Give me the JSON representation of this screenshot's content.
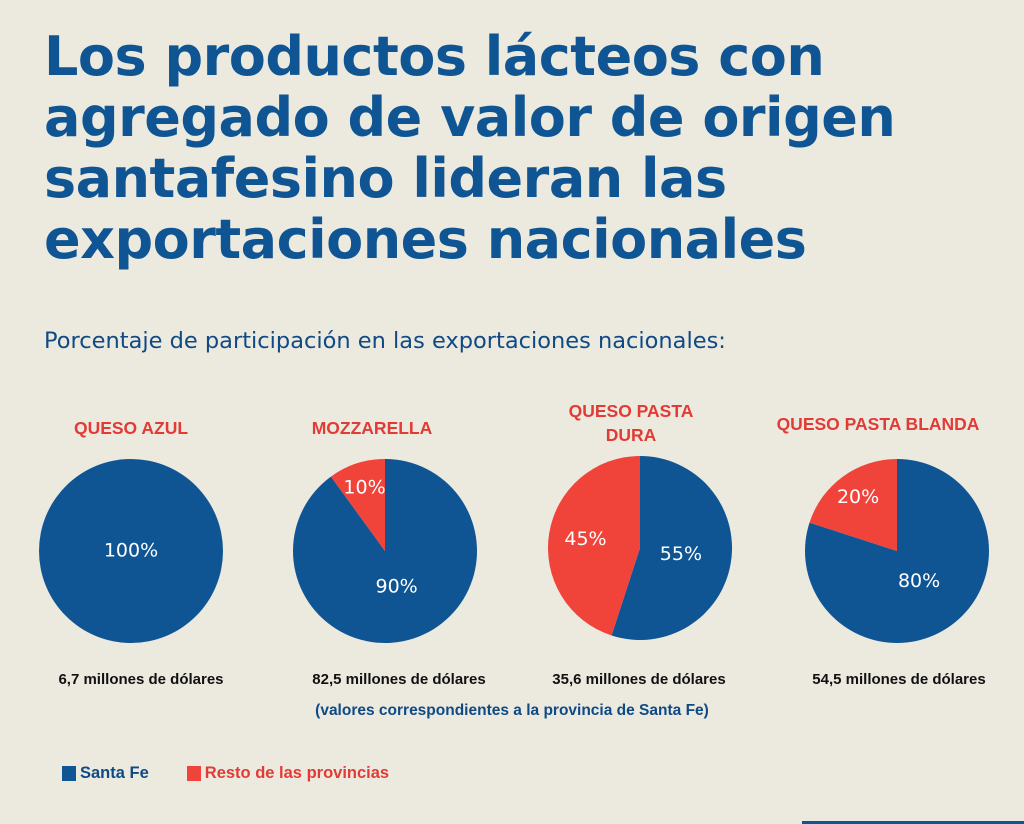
{
  "title": "Los productos lácteos con agregado de valor de origen santafesino lideran las exportaciones nacionales",
  "title_lines": [
    "Los productos lácteos con",
    "agregado de valor de origen",
    "santafesino lideran las",
    "exportaciones nacionales"
  ],
  "subtitle": "Porcentaje de participación en las exportaciones nacionales:",
  "colors": {
    "santa_fe": "#0f5593",
    "resto": "#f0433a",
    "label_red": "#e23b36",
    "background": "#ece9df"
  },
  "chart_data": {
    "type": "pie",
    "title": "Porcentaje de participación en las exportaciones nacionales:",
    "legend": [
      "Santa Fe",
      "Resto de las provincias"
    ],
    "legend_position": "bottom-left",
    "note": "(valores correspondientes a la provincia de Santa Fe)",
    "pies": [
      {
        "category": "QUESO AZUL",
        "category_lines": [
          "QUESO AZUL"
        ],
        "santa_fe": 100,
        "resto": 0,
        "labels": {
          "santa_fe": "100%",
          "resto": ""
        },
        "value_text": "6,7 millones de dólares",
        "value_musd": 6.7
      },
      {
        "category": "MOZZARELLA",
        "category_lines": [
          "MOZZARELLA"
        ],
        "santa_fe": 90,
        "resto": 10,
        "labels": {
          "santa_fe": "90%",
          "resto": "10%"
        },
        "value_text": "82,5 millones de dólares",
        "value_musd": 82.5
      },
      {
        "category": "QUESO PASTA DURA",
        "category_lines": [
          "QUESO PASTA",
          "DURA"
        ],
        "santa_fe": 55,
        "resto": 45,
        "labels": {
          "santa_fe": "55%",
          "resto": "45%"
        },
        "value_text": "35,6 millones de dólares",
        "value_musd": 35.6
      },
      {
        "category": "QUESO PASTA BLANDA",
        "category_lines": [
          "QUESO PASTA BLANDA"
        ],
        "santa_fe": 80,
        "resto": 20,
        "labels": {
          "santa_fe": "80%",
          "resto": "20%"
        },
        "value_text": "54,5 millones de dólares",
        "value_musd": 54.5
      }
    ]
  }
}
